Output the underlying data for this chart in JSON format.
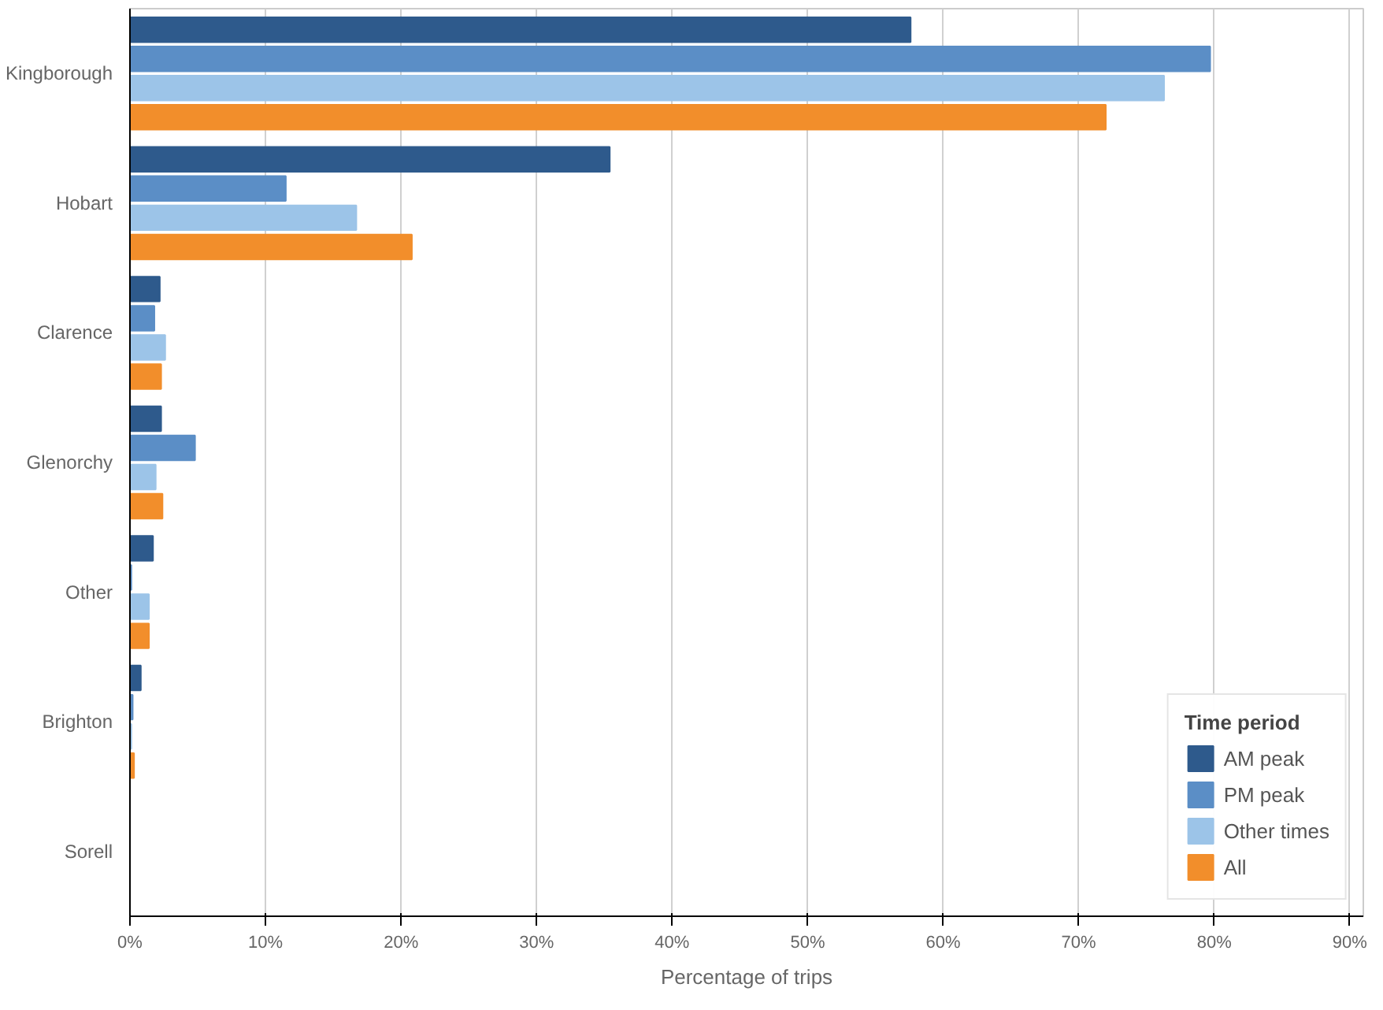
{
  "chart_data": {
    "type": "bar",
    "orientation": "horizontal",
    "xlabel": "Percentage of trips",
    "legend_title": "Time period",
    "legend": "bottom right",
    "grid": "x",
    "categories": [
      "Kingborough",
      "Hobart",
      "Clarence",
      "Glenorchy",
      "Other",
      "Brighton",
      "Sorell"
    ],
    "series": [
      {
        "name": "AM peak",
        "color": "#2e5a8c",
        "values": [
          57.6,
          35.4,
          2.2,
          2.3,
          1.7,
          0.8,
          0
        ]
      },
      {
        "name": "PM peak",
        "color": "#5b8ec6",
        "values": [
          79.7,
          11.5,
          1.8,
          4.8,
          0.1,
          0.2,
          0
        ]
      },
      {
        "name": "Other times",
        "color": "#9cc4e8",
        "values": [
          76.3,
          16.7,
          2.6,
          1.9,
          1.4,
          0.1,
          0
        ]
      },
      {
        "name": "All",
        "color": "#f28e2b",
        "values": [
          72.0,
          20.8,
          2.3,
          2.4,
          1.4,
          0.3,
          0
        ]
      }
    ],
    "xlim": [
      0,
      91
    ],
    "xticks": [
      {
        "value": 0,
        "label": "0%"
      },
      {
        "value": 10,
        "label": "10%"
      },
      {
        "value": 20,
        "label": "20%"
      },
      {
        "value": 30,
        "label": "30%"
      },
      {
        "value": 40,
        "label": "40%"
      },
      {
        "value": 50,
        "label": "50%"
      },
      {
        "value": 60,
        "label": "60%"
      },
      {
        "value": 70,
        "label": "70%"
      },
      {
        "value": 80,
        "label": "80%"
      },
      {
        "value": 90,
        "label": "90%"
      }
    ]
  }
}
